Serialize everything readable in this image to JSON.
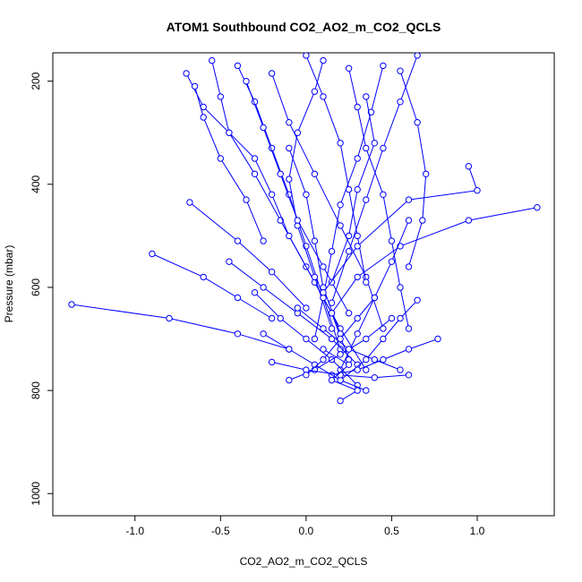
{
  "chart_data": {
    "type": "scatter",
    "title": "ATOM1 Southbound CO2_AO2_m_CO2_QCLS",
    "xlabel": "CO2_AO2_m_CO2_QCLS",
    "ylabel": "Pressure (mbar)",
    "xlim": [
      -1.48,
      1.45
    ],
    "ylim": [
      1043,
      145
    ],
    "y_reversed": true,
    "x_ticks": [
      -1.0,
      -0.5,
      0.0,
      0.5,
      1.0
    ],
    "x_tick_labels": [
      "-1.0",
      "-0.5",
      "0.0",
      "0.5",
      "1.0"
    ],
    "y_ticks": [
      200,
      400,
      600,
      800,
      1000
    ],
    "y_tick_labels": [
      "200",
      "400",
      "600",
      "800",
      "1000"
    ],
    "grid": false,
    "markers": "open-circle",
    "connected": true,
    "color": "#0000ff",
    "series": [
      {
        "x": [
          -0.55,
          -0.5,
          -0.45,
          -0.3,
          -0.15,
          0.0,
          0.15,
          0.25
        ],
        "y": [
          160,
          230,
          300,
          380,
          470,
          560,
          650,
          740
        ]
      },
      {
        "x": [
          -0.7,
          -0.6,
          -0.45,
          -0.3,
          -0.2,
          -0.1,
          0.05,
          0.2,
          0.35
        ],
        "y": [
          185,
          250,
          300,
          350,
          420,
          500,
          590,
          680,
          760
        ]
      },
      {
        "x": [
          -0.4,
          -0.3,
          -0.2,
          -0.1,
          0.0,
          0.1,
          0.2
        ],
        "y": [
          170,
          240,
          330,
          420,
          520,
          620,
          720
        ]
      },
      {
        "x": [
          0.1,
          0.05,
          -0.05,
          -0.1,
          -0.05,
          0.05,
          0.15
        ],
        "y": [
          160,
          220,
          300,
          390,
          480,
          580,
          680
        ]
      },
      {
        "x": [
          0.25,
          0.3,
          0.35,
          0.45,
          0.5,
          0.55,
          0.6
        ],
        "y": [
          175,
          250,
          330,
          420,
          510,
          600,
          680
        ]
      },
      {
        "x": [
          0.45,
          0.38,
          0.3,
          0.2,
          0.15,
          0.1,
          0.05
        ],
        "y": [
          170,
          260,
          350,
          440,
          530,
          620,
          700
        ]
      },
      {
        "x": [
          -0.2,
          -0.1,
          0.05,
          0.2,
          0.35,
          0.45
        ],
        "y": [
          185,
          280,
          380,
          480,
          580,
          680
        ]
      },
      {
        "x": [
          0.0,
          0.1,
          0.2,
          0.25,
          0.3,
          0.35
        ],
        "y": [
          150,
          230,
          320,
          410,
          500,
          590
        ]
      },
      {
        "x": [
          -0.35,
          -0.25,
          -0.15,
          -0.05,
          0.1,
          0.25
        ],
        "y": [
          200,
          290,
          380,
          470,
          560,
          650
        ]
      },
      {
        "x": [
          0.65,
          0.55,
          0.45,
          0.35,
          0.25,
          0.15
        ],
        "y": [
          150,
          240,
          330,
          430,
          530,
          630
        ]
      },
      {
        "x": [
          -0.65,
          -0.6,
          -0.5,
          -0.35,
          -0.25
        ],
        "y": [
          210,
          270,
          350,
          430,
          510
        ]
      },
      {
        "x": [
          0.55,
          0.65,
          0.7,
          0.68,
          0.6
        ],
        "y": [
          180,
          280,
          380,
          470,
          560
        ]
      },
      {
        "x": [
          0.35,
          0.4,
          0.3,
          0.25,
          0.15
        ],
        "y": [
          230,
          320,
          410,
          500,
          590
        ]
      },
      {
        "x": [
          -0.1,
          0.0,
          0.05,
          0.1,
          0.2
        ],
        "y": [
          330,
          420,
          510,
          600,
          690
        ]
      },
      {
        "x": [
          0.95,
          1.0,
          0.6,
          0.3,
          0.1
        ],
        "y": [
          365,
          412,
          430,
          520,
          610
        ]
      },
      {
        "x": [
          1.35,
          0.95,
          0.55,
          0.3,
          0.15
        ],
        "y": [
          445,
          470,
          520,
          580,
          650
        ]
      },
      {
        "x": [
          -0.68,
          -0.4,
          -0.2,
          0.0
        ],
        "y": [
          435,
          510,
          570,
          640
        ]
      },
      {
        "x": [
          -0.9,
          -0.6,
          -0.4,
          -0.2
        ],
        "y": [
          535,
          580,
          620,
          660
        ]
      },
      {
        "x": [
          -1.37,
          -0.8,
          -0.4,
          -0.1
        ],
        "y": [
          633,
          660,
          690,
          720
        ]
      },
      {
        "x": [
          -0.45,
          -0.25,
          -0.05,
          0.15,
          0.3
        ],
        "y": [
          550,
          600,
          650,
          700,
          750
        ]
      },
      {
        "x": [
          0.6,
          0.5,
          0.4,
          0.3,
          0.2
        ],
        "y": [
          470,
          550,
          620,
          690,
          760
        ]
      },
      {
        "x": [
          0.65,
          0.55,
          0.45,
          0.35,
          0.2
        ],
        "y": [
          625,
          660,
          700,
          740,
          780
        ]
      },
      {
        "x": [
          -0.3,
          -0.15,
          0.0,
          0.15,
          0.3
        ],
        "y": [
          610,
          660,
          700,
          740,
          790
        ]
      },
      {
        "x": [
          0.77,
          0.6,
          0.45,
          0.3,
          0.15
        ],
        "y": [
          700,
          720,
          740,
          760,
          770
        ]
      },
      {
        "x": [
          -0.25,
          -0.1,
          0.05,
          0.2,
          0.35
        ],
        "y": [
          690,
          720,
          750,
          780,
          800
        ]
      },
      {
        "x": [
          0.5,
          0.35,
          0.2,
          0.05,
          -0.1
        ],
        "y": [
          660,
          700,
          730,
          760,
          780
        ]
      },
      {
        "x": [
          -0.2,
          0.0,
          0.2,
          0.4,
          0.6
        ],
        "y": [
          745,
          760,
          770,
          775,
          770
        ]
      },
      {
        "x": [
          0.1,
          0.25,
          0.15,
          0.3,
          0.2
        ],
        "y": [
          720,
          750,
          780,
          800,
          820
        ]
      },
      {
        "x": [
          -0.05,
          0.1,
          0.25,
          0.4,
          0.55
        ],
        "y": [
          640,
          680,
          720,
          740,
          760
        ]
      },
      {
        "x": [
          0.4,
          0.3,
          0.2,
          0.1,
          0.0
        ],
        "y": [
          620,
          660,
          700,
          740,
          770
        ]
      }
    ]
  }
}
